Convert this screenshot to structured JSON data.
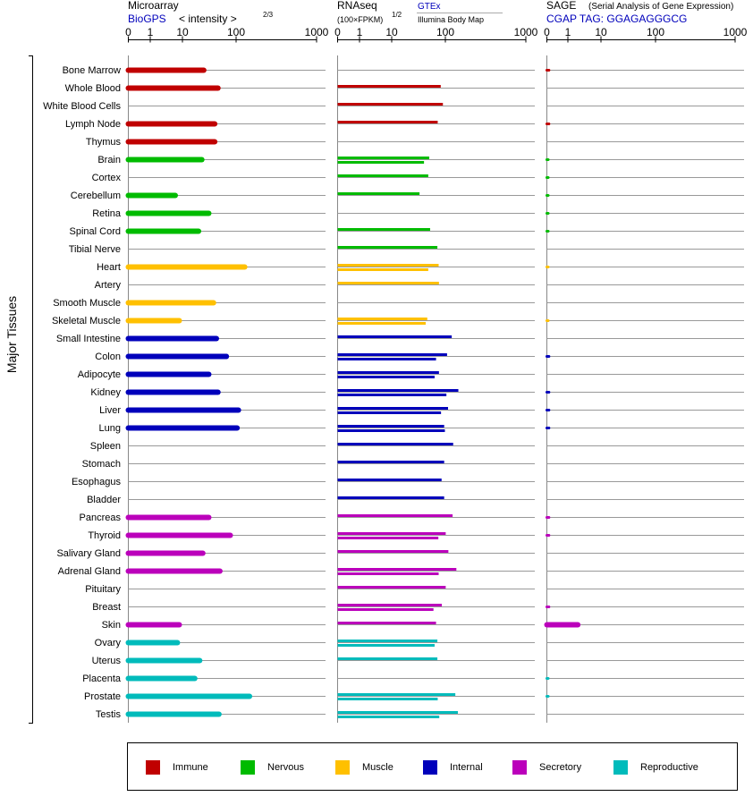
{
  "chart_data": {
    "type": "bar",
    "group_label": "Major Tissues",
    "panels": [
      {
        "title": "Microarray",
        "subtitle": "BioGPS",
        "scale_label": "< intensity >",
        "scale_exponent": "2/3",
        "ticks": [
          "0",
          "1",
          "10",
          "100",
          "1000"
        ],
        "xlim": [
          0,
          1000
        ]
      },
      {
        "title": "RNAseq",
        "subtitle": "(100×FPKM)",
        "scale_exponent": "1/2",
        "source_link": "GTEx",
        "source_text": "Illumina Body Map",
        "ticks": [
          "0",
          "1",
          "10",
          "100",
          "1000"
        ],
        "xlim": [
          0,
          1000
        ]
      },
      {
        "title": "SAGE",
        "title_note": "(Serial Analysis of Gene Expression)",
        "subtitle": "CGAP  TAG: GGAGAGGGCG",
        "ticks": [
          "0",
          "1",
          "10",
          "100",
          "1000"
        ],
        "xlim": [
          0,
          1000
        ]
      }
    ],
    "categories": [
      {
        "name": "Immune",
        "color": "#c00000"
      },
      {
        "name": "Nervous",
        "color": "#00bb00"
      },
      {
        "name": "Muscle",
        "color": "#ffc000"
      },
      {
        "name": "Internal",
        "color": "#0000bb"
      },
      {
        "name": "Secretory",
        "color": "#bb00bb"
      },
      {
        "name": "Reproductive",
        "color": "#00bbbb"
      }
    ],
    "tissues": [
      {
        "name": "Bone Marrow",
        "cat": 0,
        "microarray": 25,
        "rnaseq": [],
        "sage": 0.1
      },
      {
        "name": "Whole Blood",
        "cat": 0,
        "microarray": 46,
        "rnaseq": [
          82
        ],
        "sage": null
      },
      {
        "name": "White Blood Cells",
        "cat": 0,
        "microarray": null,
        "rnaseq": [
          90
        ],
        "sage": null
      },
      {
        "name": "Lymph Node",
        "cat": 0,
        "microarray": 40,
        "rnaseq": [
          72
        ],
        "sage": 0.1
      },
      {
        "name": "Thymus",
        "cat": 0,
        "microarray": 40,
        "rnaseq": [],
        "sage": null
      },
      {
        "name": "Brain",
        "cat": 1,
        "microarray": 23,
        "rnaseq": [
          50,
          40
        ],
        "sage": 0.05
      },
      {
        "name": "Cortex",
        "cat": 1,
        "microarray": null,
        "rnaseq": [
          48
        ],
        "sage": 0.05
      },
      {
        "name": "Cerebellum",
        "cat": 1,
        "microarray": 6,
        "rnaseq": [
          33
        ],
        "sage": 0.05
      },
      {
        "name": "Retina",
        "cat": 1,
        "microarray": 31,
        "rnaseq": [],
        "sage": 0.05
      },
      {
        "name": "Spinal Cord",
        "cat": 1,
        "microarray": 20,
        "rnaseq": [
          52
        ],
        "sage": 0.05
      },
      {
        "name": "Tibial Nerve",
        "cat": 1,
        "microarray": null,
        "rnaseq": [
          71
        ],
        "sage": null
      },
      {
        "name": "Heart",
        "cat": 2,
        "microarray": 128,
        "rnaseq": [
          75,
          48
        ],
        "sage": 0.05
      },
      {
        "name": "Artery",
        "cat": 2,
        "microarray": null,
        "rnaseq": [
          76
        ],
        "sage": null
      },
      {
        "name": "Smooth Muscle",
        "cat": 2,
        "microarray": 38,
        "rnaseq": [],
        "sage": null
      },
      {
        "name": "Skeletal Muscle",
        "cat": 2,
        "microarray": 8,
        "rnaseq": [
          46,
          43
        ],
        "sage": 0.05
      },
      {
        "name": "Small Intestine",
        "cat": 3,
        "microarray": 43,
        "rnaseq": [
          120
        ],
        "sage": null
      },
      {
        "name": "Colon",
        "cat": 3,
        "microarray": 66,
        "rnaseq": [
          105,
          67
        ],
        "sage": 0.1
      },
      {
        "name": "Adipocyte",
        "cat": 3,
        "microarray": 31,
        "rnaseq": [
          76,
          63
        ],
        "sage": null
      },
      {
        "name": "Kidney",
        "cat": 3,
        "microarray": 46,
        "rnaseq": [
          145,
          103
        ],
        "sage": 0.1
      },
      {
        "name": "Liver",
        "cat": 3,
        "microarray": 107,
        "rnaseq": [
          108,
          83
        ],
        "sage": 0.1
      },
      {
        "name": "Lung",
        "cat": 3,
        "microarray": 103,
        "rnaseq": [
          95,
          98
        ],
        "sage": 0.1
      },
      {
        "name": "Spleen",
        "cat": 3,
        "microarray": null,
        "rnaseq": [
          125
        ],
        "sage": null
      },
      {
        "name": "Stomach",
        "cat": 3,
        "microarray": null,
        "rnaseq": [
          95
        ],
        "sage": null
      },
      {
        "name": "Esophagus",
        "cat": 3,
        "microarray": null,
        "rnaseq": [
          85
        ],
        "sage": null
      },
      {
        "name": "Bladder",
        "cat": 3,
        "microarray": null,
        "rnaseq": [
          95
        ],
        "sage": null
      },
      {
        "name": "Pancreas",
        "cat": 4,
        "microarray": 31,
        "rnaseq": [
          123
        ],
        "sage": 0.1
      },
      {
        "name": "Thyroid",
        "cat": 4,
        "microarray": 78,
        "rnaseq": [
          101,
          74
        ],
        "sage": 0.1
      },
      {
        "name": "Salivary Gland",
        "cat": 4,
        "microarray": 24,
        "rnaseq": [
          109
        ],
        "sage": null
      },
      {
        "name": "Adrenal Gland",
        "cat": 4,
        "microarray": 50,
        "rnaseq": [
          137,
          75
        ],
        "sage": null
      },
      {
        "name": "Pituitary",
        "cat": 4,
        "microarray": null,
        "rnaseq": [
          101
        ],
        "sage": null
      },
      {
        "name": "Breast",
        "cat": 4,
        "microarray": null,
        "rnaseq": [
          86,
          60
        ],
        "sage": 0.1
      },
      {
        "name": "Skin",
        "cat": 4,
        "microarray": 8,
        "rnaseq": [
          67
        ],
        "sage": 2
      },
      {
        "name": "Ovary",
        "cat": 5,
        "microarray": 7,
        "rnaseq": [
          71,
          63
        ],
        "sage": null
      },
      {
        "name": "Uterus",
        "cat": 5,
        "microarray": 21,
        "rnaseq": [
          71
        ],
        "sage": null
      },
      {
        "name": "Placenta",
        "cat": 5,
        "microarray": 17,
        "rnaseq": [],
        "sage": 0.05
      },
      {
        "name": "Prostate",
        "cat": 5,
        "microarray": 147,
        "rnaseq": [
          133,
          72
        ],
        "sage": 0.05
      },
      {
        "name": "Testis",
        "cat": 5,
        "microarray": 48,
        "rnaseq": [
          143,
          77
        ],
        "sage": null
      }
    ]
  }
}
